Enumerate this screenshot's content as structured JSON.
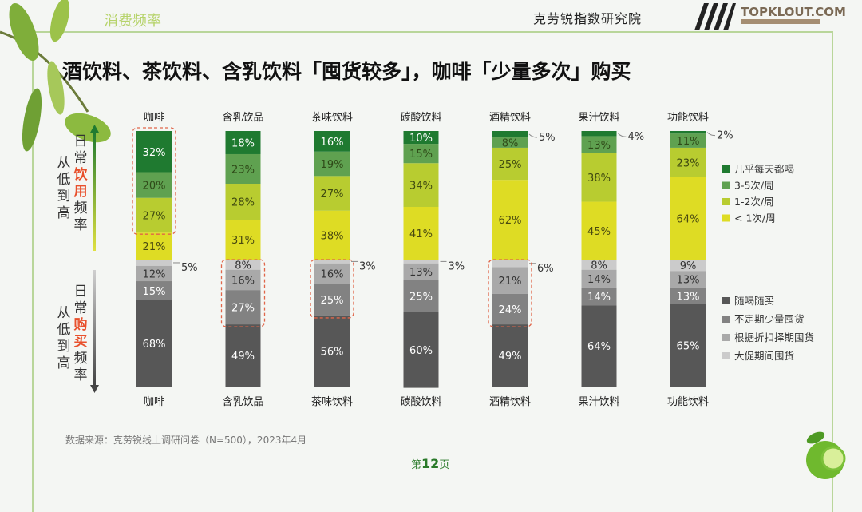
{
  "header": {
    "section": "消费频率",
    "org": "克劳锐指数研究院",
    "brand": "TOPKLOUT.COM"
  },
  "title": "酒饮料、茶饮料、含乳饮料「囤货较多」，咖啡「少量多次」购买",
  "footer": {
    "source": "数据来源：克劳锐线上调研问卷（N=500），2023年4月",
    "page_prefix": "第",
    "page_number": "12",
    "page_suffix": "页"
  },
  "axis_labels": {
    "upper": {
      "main": [
        "日",
        "常",
        "饮",
        "用",
        "频",
        "率"
      ],
      "highlight": [
        "饮",
        "用"
      ],
      "sub": [
        "从",
        "低",
        "到",
        "高"
      ]
    },
    "lower": {
      "main": [
        "日",
        "常",
        "购",
        "买",
        "频",
        "率"
      ],
      "highlight": [
        "购",
        "买"
      ],
      "sub": [
        "从",
        "低",
        "到",
        "高"
      ]
    }
  },
  "chart_data": [
    {
      "type": "bar",
      "stacked": true,
      "orientation": "vertical",
      "section": "upper",
      "categories": [
        "咖啡",
        "含乳饮品",
        "茶味饮料",
        "碳酸饮料",
        "酒精饮料",
        "果汁饮料",
        "功能饮料"
      ],
      "unit": "%",
      "ylim": [
        0,
        100
      ],
      "legend_position": "right",
      "series": [
        {
          "name": "几乎每天都喝",
          "color": "#1f7a30",
          "values": [
            32,
            18,
            16,
            10,
            5,
            4,
            2
          ]
        },
        {
          "name": "3-5次/周",
          "color": "#5fa150",
          "values": [
            20,
            23,
            19,
            15,
            8,
            13,
            11
          ]
        },
        {
          "name": "1-2次/周",
          "color": "#b8cc30",
          "values": [
            27,
            28,
            27,
            34,
            25,
            38,
            23
          ]
        },
        {
          "name": "< 1次/周",
          "color": "#dedc24",
          "values": [
            21,
            31,
            38,
            41,
            62,
            45,
            64
          ]
        }
      ],
      "highlights": [
        "咖啡"
      ]
    },
    {
      "type": "bar",
      "stacked": true,
      "orientation": "vertical",
      "section": "lower",
      "categories": [
        "咖啡",
        "含乳饮品",
        "茶味饮料",
        "碳酸饮料",
        "酒精饮料",
        "果汁饮料",
        "功能饮料"
      ],
      "unit": "%",
      "ylim": [
        0,
        100
      ],
      "legend_position": "right",
      "series": [
        {
          "name": "随喝随买",
          "color": "#575757",
          "values": [
            68,
            49,
            56,
            60,
            49,
            64,
            65
          ]
        },
        {
          "name": "不定期少量囤货",
          "color": "#828282",
          "values": [
            15,
            27,
            25,
            25,
            24,
            14,
            13
          ]
        },
        {
          "name": "根据折扣择期囤货",
          "color": "#a9a9a9",
          "values": [
            12,
            16,
            16,
            13,
            21,
            14,
            13
          ]
        },
        {
          "name": "大促期间囤货",
          "color": "#cbcbcb",
          "values": [
            5,
            8,
            3,
            3,
            6,
            8,
            9
          ]
        }
      ],
      "highlights": [
        "含乳饮品",
        "茶味饮料",
        "酒精饮料"
      ]
    }
  ]
}
